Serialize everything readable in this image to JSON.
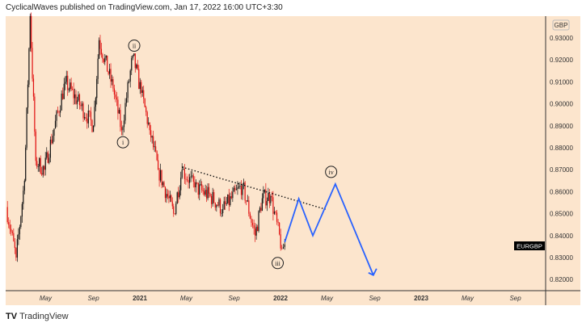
{
  "header": {
    "text": "CyclicalWaves published on TradingView.com, Jan 17, 2022 16:00 UTC+3:30"
  },
  "footer": {
    "logo": "TV",
    "brand": "TradingView"
  },
  "chart_data": {
    "type": "candlestick",
    "symbol": "EURGBP",
    "currency": "GBP",
    "ylim": [
      0.815,
      0.945
    ],
    "xlim": [
      2020.0,
      2023.85
    ],
    "y_ticks": [
      "0.93000",
      "0.92000",
      "0.91000",
      "0.90000",
      "0.89000",
      "0.88000",
      "0.87000",
      "0.86000",
      "0.85000",
      "0.84000",
      "0.83000",
      "0.82000"
    ],
    "y_tick_values": [
      0.93,
      0.92,
      0.91,
      0.9,
      0.89,
      0.88,
      0.87,
      0.86,
      0.85,
      0.84,
      0.83,
      0.82
    ],
    "x_ticks": [
      {
        "label": "May",
        "t": 2020.33,
        "bold": false
      },
      {
        "label": "Sep",
        "t": 2020.67,
        "bold": false
      },
      {
        "label": "2021",
        "t": 2021.0,
        "bold": true
      },
      {
        "label": "May",
        "t": 2021.33,
        "bold": false
      },
      {
        "label": "Sep",
        "t": 2021.67,
        "bold": false
      },
      {
        "label": "2022",
        "t": 2022.0,
        "bold": true
      },
      {
        "label": "May",
        "t": 2022.33,
        "bold": false
      },
      {
        "label": "Sep",
        "t": 2022.67,
        "bold": false
      },
      {
        "label": "2023",
        "t": 2023.0,
        "bold": true
      },
      {
        "label": "May",
        "t": 2023.33,
        "bold": false
      },
      {
        "label": "Sep",
        "t": 2023.67,
        "bold": false
      }
    ],
    "price_path": [
      [
        2020.05,
        0.853
      ],
      [
        2020.12,
        0.83
      ],
      [
        2020.18,
        0.865
      ],
      [
        2020.22,
        0.94
      ],
      [
        2020.26,
        0.874
      ],
      [
        2020.32,
        0.87
      ],
      [
        2020.47,
        0.91
      ],
      [
        2020.58,
        0.899
      ],
      [
        2020.67,
        0.89
      ],
      [
        2020.71,
        0.929
      ],
      [
        2020.81,
        0.907
      ],
      [
        2020.87,
        0.888
      ],
      [
        2020.95,
        0.922
      ],
      [
        2021.01,
        0.905
      ],
      [
        2021.07,
        0.888
      ],
      [
        2021.13,
        0.87
      ],
      [
        2021.24,
        0.85
      ],
      [
        2021.3,
        0.87
      ],
      [
        2021.39,
        0.862
      ],
      [
        2021.5,
        0.858
      ],
      [
        2021.59,
        0.852
      ],
      [
        2021.73,
        0.863
      ],
      [
        2021.82,
        0.84
      ],
      [
        2021.87,
        0.857
      ],
      [
        2021.93,
        0.858
      ],
      [
        2022.01,
        0.834
      ],
      [
        2022.03,
        0.836
      ]
    ],
    "projection": [
      [
        2022.03,
        0.837
      ],
      [
        2022.13,
        0.8568
      ],
      [
        2022.23,
        0.84
      ],
      [
        2022.39,
        0.8635
      ],
      [
        2022.66,
        0.822
      ]
    ],
    "trendline": [
      [
        2021.3,
        0.8712
      ],
      [
        2022.32,
        0.852
      ]
    ],
    "wave_labels": [
      {
        "text": "i",
        "t": 2020.88,
        "p": 0.8825
      },
      {
        "text": "ii",
        "t": 2020.96,
        "p": 0.9265
      },
      {
        "text": "iii",
        "t": 2021.98,
        "p": 0.8275
      },
      {
        "text": "iv",
        "t": 2022.36,
        "p": 0.869
      }
    ],
    "last_label": "EURGBP",
    "colors": {
      "bg": "#fce5cd",
      "up": "#111111",
      "down": "#e01010",
      "projection": "#2962ff"
    }
  }
}
